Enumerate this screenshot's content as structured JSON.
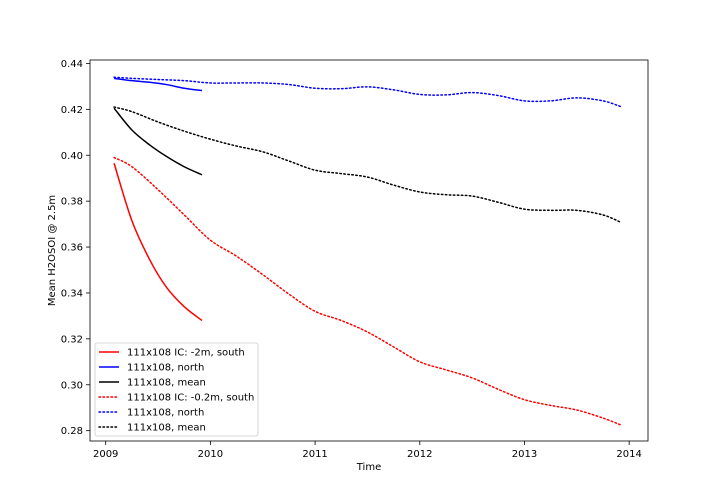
{
  "chart_data": {
    "type": "line",
    "xlabel": "Time",
    "ylabel": "Mean H2OSOI @ 2.5m",
    "xlim": [
      2008.85,
      2014.18
    ],
    "ylim": [
      0.2755,
      0.4415
    ],
    "xticks": [
      2009,
      2010,
      2011,
      2012,
      2013,
      2014
    ],
    "yticks": [
      0.28,
      0.3,
      0.32,
      0.34,
      0.36,
      0.38,
      0.4,
      0.42,
      0.44
    ],
    "grid": false,
    "legend_placement": "lower-left",
    "series": [
      {
        "name": "111x108 IC: -2m, south",
        "color": "#ff0000",
        "style": "solid",
        "x": [
          2009.08,
          2009.25,
          2009.42,
          2009.58,
          2009.75,
          2009.92
        ],
        "y": [
          0.3965,
          0.3715,
          0.3545,
          0.3425,
          0.334,
          0.328
        ]
      },
      {
        "name": "111x108, north",
        "color": "#0000ff",
        "style": "solid",
        "x": [
          2009.08,
          2009.25,
          2009.42,
          2009.58,
          2009.75,
          2009.92
        ],
        "y": [
          0.4335,
          0.4325,
          0.4318,
          0.4308,
          0.4292,
          0.4282
        ]
      },
      {
        "name": "111x108, mean",
        "color": "#000000",
        "style": "solid",
        "x": [
          2009.08,
          2009.25,
          2009.42,
          2009.58,
          2009.75,
          2009.92
        ],
        "y": [
          0.4205,
          0.411,
          0.4045,
          0.3995,
          0.395,
          0.3915
        ]
      },
      {
        "name": "111x108 IC: -0.2m, south",
        "color": "#ff0000",
        "style": "dotted",
        "x": [
          2009.08,
          2009.25,
          2009.5,
          2009.75,
          2010.0,
          2010.25,
          2010.5,
          2010.75,
          2011.0,
          2011.25,
          2011.5,
          2011.75,
          2012.0,
          2012.25,
          2012.5,
          2012.75,
          2013.0,
          2013.25,
          2013.5,
          2013.75,
          2013.92
        ],
        "y": [
          0.399,
          0.395,
          0.385,
          0.374,
          0.363,
          0.356,
          0.348,
          0.3395,
          0.332,
          0.328,
          0.323,
          0.3165,
          0.31,
          0.3065,
          0.303,
          0.298,
          0.2935,
          0.291,
          0.289,
          0.2855,
          0.2825
        ]
      },
      {
        "name": "111x108, north",
        "color": "#0000ff",
        "style": "dotted",
        "x": [
          2009.08,
          2009.25,
          2009.5,
          2009.75,
          2010.0,
          2010.25,
          2010.5,
          2010.75,
          2011.0,
          2011.25,
          2011.5,
          2011.75,
          2012.0,
          2012.25,
          2012.5,
          2012.75,
          2013.0,
          2013.25,
          2013.5,
          2013.75,
          2013.92
        ],
        "y": [
          0.434,
          0.4335,
          0.433,
          0.4325,
          0.4315,
          0.4315,
          0.4315,
          0.4308,
          0.4292,
          0.429,
          0.4298,
          0.4285,
          0.4265,
          0.4263,
          0.4273,
          0.426,
          0.4237,
          0.4237,
          0.425,
          0.4237,
          0.4212
        ]
      },
      {
        "name": "111x108, mean",
        "color": "#000000",
        "style": "dotted",
        "x": [
          2009.08,
          2009.25,
          2009.5,
          2009.75,
          2010.0,
          2010.25,
          2010.5,
          2010.75,
          2011.0,
          2011.25,
          2011.5,
          2011.75,
          2012.0,
          2012.25,
          2012.5,
          2012.75,
          2013.0,
          2013.25,
          2013.5,
          2013.75,
          2013.92
        ],
        "y": [
          0.421,
          0.419,
          0.4145,
          0.4105,
          0.407,
          0.404,
          0.4015,
          0.3975,
          0.3935,
          0.392,
          0.3905,
          0.387,
          0.384,
          0.3828,
          0.3822,
          0.3795,
          0.3765,
          0.376,
          0.376,
          0.374,
          0.3708
        ]
      }
    ]
  }
}
